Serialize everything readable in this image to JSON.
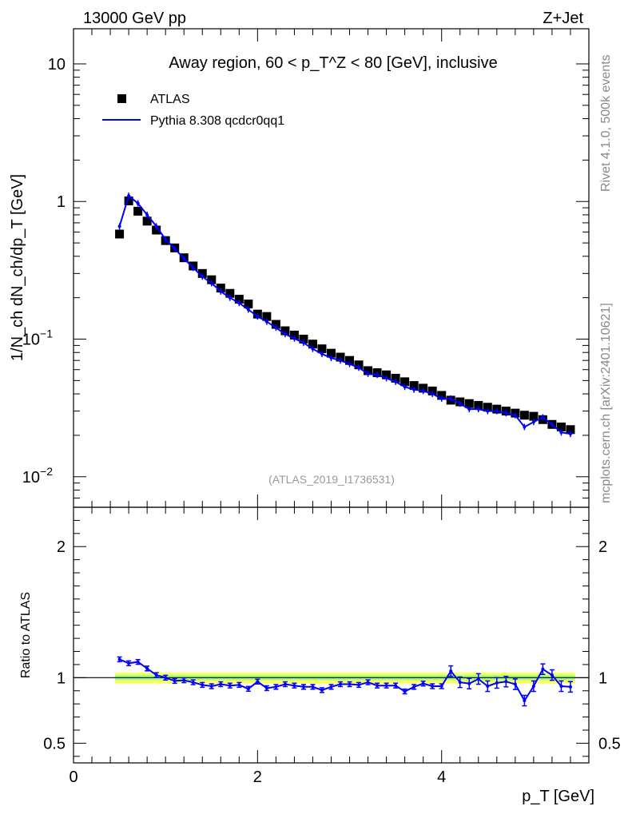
{
  "header": {
    "energy_label": "13000 GeV pp",
    "process_label": "Z+Jet"
  },
  "side": {
    "rivet_label": "Rivet 4.1.0,  500k events",
    "mcplots_label": "mcplots.cern.ch [arXiv:2401.10621]"
  },
  "chart_data": [
    {
      "type": "scatter",
      "title": "Away region, 60 < p_T^Z < 80 [GeV], inclusive",
      "analysis_label": "(ATLAS_2019_I1736531)",
      "ylabel": "1/N_ch dN_ch/dp_T [GeV]",
      "yscale": "log",
      "ylim": [
        0.006,
        18
      ],
      "xlim": [
        0,
        5.6
      ],
      "y_ticks": [
        "10^-2",
        "10^-1",
        "1",
        "10"
      ],
      "legend_position": "top-left",
      "series": [
        {
          "name": "ATLAS",
          "style": "black-square-markers",
          "x": [
            0.5,
            0.6,
            0.7,
            0.8,
            0.9,
            1.0,
            1.1,
            1.2,
            1.3,
            1.4,
            1.5,
            1.6,
            1.7,
            1.8,
            1.9,
            2.0,
            2.1,
            2.2,
            2.3,
            2.4,
            2.5,
            2.6,
            2.7,
            2.8,
            2.9,
            3.0,
            3.1,
            3.2,
            3.3,
            3.4,
            3.5,
            3.6,
            3.7,
            3.8,
            3.9,
            4.0,
            4.1,
            4.2,
            4.3,
            4.4,
            4.5,
            4.6,
            4.7,
            4.8,
            4.9,
            5.0,
            5.1,
            5.2,
            5.3,
            5.4
          ],
          "y": [
            0.58,
            1.01,
            0.85,
            0.72,
            0.62,
            0.52,
            0.46,
            0.39,
            0.34,
            0.3,
            0.27,
            0.235,
            0.215,
            0.195,
            0.18,
            0.152,
            0.146,
            0.128,
            0.115,
            0.107,
            0.1,
            0.092,
            0.085,
            0.079,
            0.074,
            0.07,
            0.065,
            0.059,
            0.057,
            0.055,
            0.052,
            0.049,
            0.046,
            0.044,
            0.042,
            0.039,
            0.036,
            0.035,
            0.034,
            0.033,
            0.032,
            0.031,
            0.03,
            0.029,
            0.028,
            0.0275,
            0.026,
            0.024,
            0.023,
            0.022
          ]
        },
        {
          "name": "Pythia 8.308 qcdcr0qq1",
          "style": "blue-line",
          "color": "#0000ff",
          "x": [
            0.5,
            0.6,
            0.7,
            0.8,
            0.9,
            1.0,
            1.1,
            1.2,
            1.3,
            1.4,
            1.5,
            1.6,
            1.7,
            1.8,
            1.9,
            2.0,
            2.1,
            2.2,
            2.3,
            2.4,
            2.5,
            2.6,
            2.7,
            2.8,
            2.9,
            3.0,
            3.1,
            3.2,
            3.3,
            3.4,
            3.5,
            3.6,
            3.7,
            3.8,
            3.9,
            4.0,
            4.1,
            4.2,
            4.3,
            4.4,
            4.5,
            4.6,
            4.7,
            4.8,
            4.9,
            5.0,
            5.1,
            5.2,
            5.3,
            5.4
          ],
          "y": [
            0.66,
            1.1,
            0.97,
            0.8,
            0.66,
            0.53,
            0.455,
            0.385,
            0.33,
            0.285,
            0.255,
            0.222,
            0.2,
            0.183,
            0.164,
            0.146,
            0.134,
            0.121,
            0.109,
            0.101,
            0.094,
            0.085,
            0.078,
            0.073,
            0.07,
            0.066,
            0.062,
            0.056,
            0.055,
            0.052,
            0.049,
            0.045,
            0.043,
            0.042,
            0.04,
            0.037,
            0.037,
            0.034,
            0.031,
            0.031,
            0.03,
            0.03,
            0.029,
            0.028,
            0.023,
            0.025,
            0.027,
            0.024,
            0.021,
            0.0205
          ]
        }
      ]
    },
    {
      "type": "line",
      "ylabel": "Ratio to ATLAS",
      "xlabel": "p_T [GeV]",
      "xlim": [
        0,
        5.6
      ],
      "ylim": [
        0.35,
        2.3
      ],
      "x_ticks": [
        "0",
        "2",
        "4"
      ],
      "y_ticks": [
        "0.5",
        "1",
        "2"
      ],
      "band_colors": [
        "#ffff66",
        "#a0ff80"
      ],
      "series": [
        {
          "name": "Pythia 8.308 qcdcr0qq1 / ATLAS",
          "color": "#0000ff",
          "x": [
            0.5,
            0.6,
            0.7,
            0.8,
            0.9,
            1.0,
            1.1,
            1.2,
            1.3,
            1.4,
            1.5,
            1.6,
            1.7,
            1.8,
            1.9,
            2.0,
            2.1,
            2.2,
            2.3,
            2.4,
            2.5,
            2.6,
            2.7,
            2.8,
            2.9,
            3.0,
            3.1,
            3.2,
            3.3,
            3.4,
            3.5,
            3.6,
            3.7,
            3.8,
            3.9,
            4.0,
            4.1,
            4.2,
            4.3,
            4.4,
            4.5,
            4.6,
            4.7,
            4.8,
            4.9,
            5.0,
            5.1,
            5.2,
            5.3,
            5.4
          ],
          "y": [
            1.14,
            1.11,
            1.12,
            1.07,
            1.02,
            1.0,
            0.975,
            0.98,
            0.965,
            0.945,
            0.935,
            0.95,
            0.94,
            0.945,
            0.915,
            0.97,
            0.92,
            0.93,
            0.95,
            0.94,
            0.93,
            0.93,
            0.905,
            0.93,
            0.95,
            0.95,
            0.945,
            0.965,
            0.94,
            0.94,
            0.94,
            0.895,
            0.93,
            0.955,
            0.935,
            0.935,
            1.05,
            0.965,
            0.955,
            0.99,
            0.935,
            0.96,
            0.97,
            0.95,
            0.825,
            0.935,
            1.065,
            1.02,
            0.935,
            0.93
          ]
        }
      ]
    }
  ]
}
